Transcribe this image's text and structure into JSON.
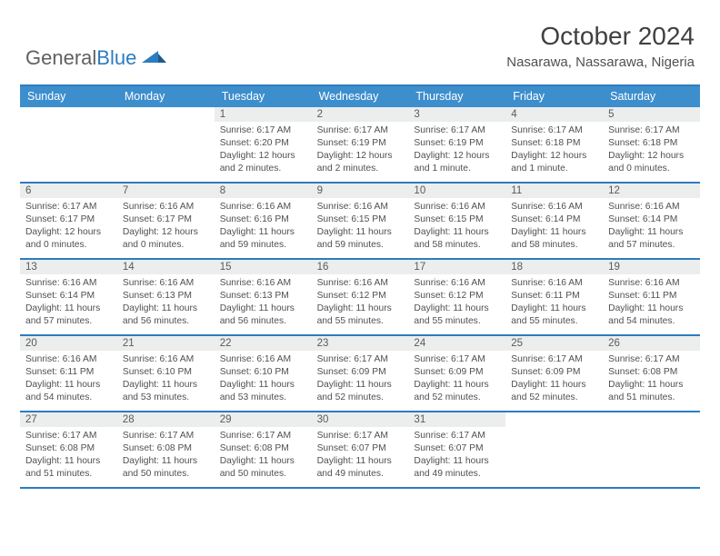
{
  "logo": {
    "text1": "General",
    "text2": "Blue"
  },
  "title": "October 2024",
  "location": "Nasarawa, Nassarawa, Nigeria",
  "colors": {
    "header_bg": "#3d8ecd",
    "border": "#2d7cc0",
    "daynum_bg": "#eceded",
    "text": "#505050"
  },
  "day_names": [
    "Sunday",
    "Monday",
    "Tuesday",
    "Wednesday",
    "Thursday",
    "Friday",
    "Saturday"
  ],
  "first_weekday": 2,
  "days": [
    {
      "n": 1,
      "sr": "6:17 AM",
      "ss": "6:20 PM",
      "dl": "12 hours and 2 minutes."
    },
    {
      "n": 2,
      "sr": "6:17 AM",
      "ss": "6:19 PM",
      "dl": "12 hours and 2 minutes."
    },
    {
      "n": 3,
      "sr": "6:17 AM",
      "ss": "6:19 PM",
      "dl": "12 hours and 1 minute."
    },
    {
      "n": 4,
      "sr": "6:17 AM",
      "ss": "6:18 PM",
      "dl": "12 hours and 1 minute."
    },
    {
      "n": 5,
      "sr": "6:17 AM",
      "ss": "6:18 PM",
      "dl": "12 hours and 0 minutes."
    },
    {
      "n": 6,
      "sr": "6:17 AM",
      "ss": "6:17 PM",
      "dl": "12 hours and 0 minutes."
    },
    {
      "n": 7,
      "sr": "6:16 AM",
      "ss": "6:17 PM",
      "dl": "12 hours and 0 minutes."
    },
    {
      "n": 8,
      "sr": "6:16 AM",
      "ss": "6:16 PM",
      "dl": "11 hours and 59 minutes."
    },
    {
      "n": 9,
      "sr": "6:16 AM",
      "ss": "6:15 PM",
      "dl": "11 hours and 59 minutes."
    },
    {
      "n": 10,
      "sr": "6:16 AM",
      "ss": "6:15 PM",
      "dl": "11 hours and 58 minutes."
    },
    {
      "n": 11,
      "sr": "6:16 AM",
      "ss": "6:14 PM",
      "dl": "11 hours and 58 minutes."
    },
    {
      "n": 12,
      "sr": "6:16 AM",
      "ss": "6:14 PM",
      "dl": "11 hours and 57 minutes."
    },
    {
      "n": 13,
      "sr": "6:16 AM",
      "ss": "6:14 PM",
      "dl": "11 hours and 57 minutes."
    },
    {
      "n": 14,
      "sr": "6:16 AM",
      "ss": "6:13 PM",
      "dl": "11 hours and 56 minutes."
    },
    {
      "n": 15,
      "sr": "6:16 AM",
      "ss": "6:13 PM",
      "dl": "11 hours and 56 minutes."
    },
    {
      "n": 16,
      "sr": "6:16 AM",
      "ss": "6:12 PM",
      "dl": "11 hours and 55 minutes."
    },
    {
      "n": 17,
      "sr": "6:16 AM",
      "ss": "6:12 PM",
      "dl": "11 hours and 55 minutes."
    },
    {
      "n": 18,
      "sr": "6:16 AM",
      "ss": "6:11 PM",
      "dl": "11 hours and 55 minutes."
    },
    {
      "n": 19,
      "sr": "6:16 AM",
      "ss": "6:11 PM",
      "dl": "11 hours and 54 minutes."
    },
    {
      "n": 20,
      "sr": "6:16 AM",
      "ss": "6:11 PM",
      "dl": "11 hours and 54 minutes."
    },
    {
      "n": 21,
      "sr": "6:16 AM",
      "ss": "6:10 PM",
      "dl": "11 hours and 53 minutes."
    },
    {
      "n": 22,
      "sr": "6:16 AM",
      "ss": "6:10 PM",
      "dl": "11 hours and 53 minutes."
    },
    {
      "n": 23,
      "sr": "6:17 AM",
      "ss": "6:09 PM",
      "dl": "11 hours and 52 minutes."
    },
    {
      "n": 24,
      "sr": "6:17 AM",
      "ss": "6:09 PM",
      "dl": "11 hours and 52 minutes."
    },
    {
      "n": 25,
      "sr": "6:17 AM",
      "ss": "6:09 PM",
      "dl": "11 hours and 52 minutes."
    },
    {
      "n": 26,
      "sr": "6:17 AM",
      "ss": "6:08 PM",
      "dl": "11 hours and 51 minutes."
    },
    {
      "n": 27,
      "sr": "6:17 AM",
      "ss": "6:08 PM",
      "dl": "11 hours and 51 minutes."
    },
    {
      "n": 28,
      "sr": "6:17 AM",
      "ss": "6:08 PM",
      "dl": "11 hours and 50 minutes."
    },
    {
      "n": 29,
      "sr": "6:17 AM",
      "ss": "6:08 PM",
      "dl": "11 hours and 50 minutes."
    },
    {
      "n": 30,
      "sr": "6:17 AM",
      "ss": "6:07 PM",
      "dl": "11 hours and 49 minutes."
    },
    {
      "n": 31,
      "sr": "6:17 AM",
      "ss": "6:07 PM",
      "dl": "11 hours and 49 minutes."
    }
  ],
  "labels": {
    "sunrise": "Sunrise:",
    "sunset": "Sunset:",
    "daylight": "Daylight:"
  }
}
